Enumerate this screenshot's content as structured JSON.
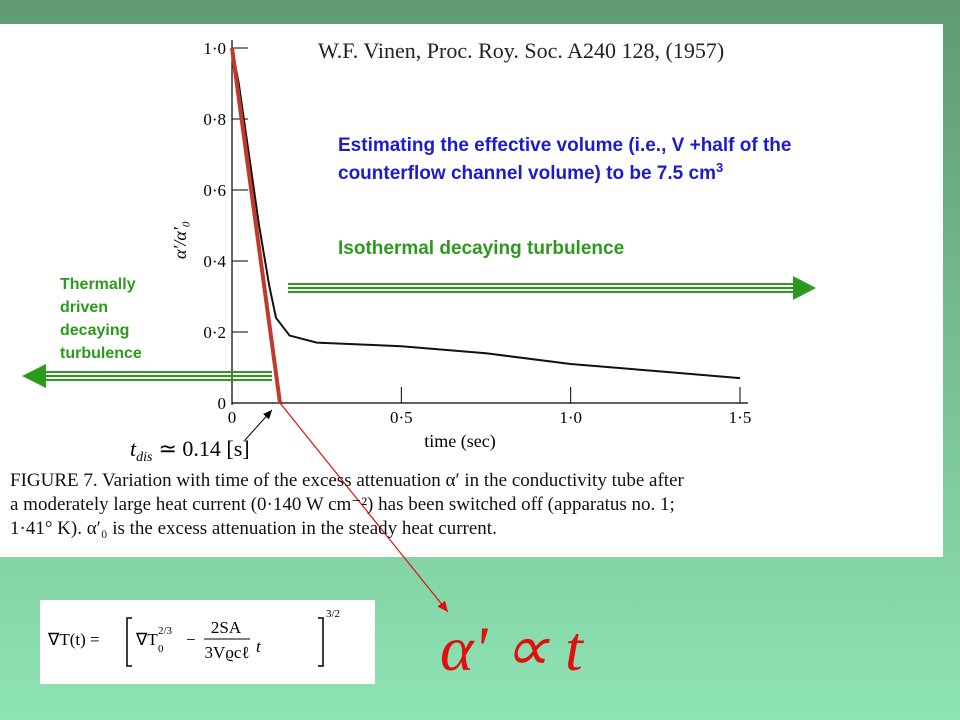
{
  "citation": "W.F. Vinen, Proc. Roy. Soc. A240 128, (1957)",
  "estimate": {
    "line1": "Estimating the effective volume (i.e., V +half of the",
    "line2": "counterflow channel volume) to be 7.5 cm",
    "sup": "3"
  },
  "isothermal_label": "Isothermal decaying turbulence",
  "thermal_label": [
    "Thermally",
    "driven",
    "decaying",
    "turbulence"
  ],
  "tdis": {
    "t": "t",
    "sub": "dis",
    "rest": "≃ 0.14 [s]"
  },
  "chart_data": {
    "type": "line",
    "y_label": "α′/α′₀",
    "x_label": "time (sec)",
    "x": [
      0,
      0.02,
      0.05,
      0.08,
      0.11,
      0.13,
      0.17,
      0.25,
      0.5,
      0.75,
      1.0,
      1.25,
      1.5
    ],
    "values": [
      1.0,
      0.9,
      0.7,
      0.5,
      0.33,
      0.24,
      0.19,
      0.17,
      0.16,
      0.14,
      0.11,
      0.09,
      0.07
    ],
    "color": "#111111",
    "xlim": [
      0,
      1.5
    ],
    "ylim": [
      0,
      1
    ],
    "xticks": [
      0,
      {
        "value": 0.5,
        "label": "0·5"
      },
      {
        "value": 1,
        "label": "1·0"
      },
      {
        "value": 1.5,
        "label": "1·5"
      }
    ],
    "yticks": [
      0,
      {
        "value": 0.2,
        "label": "0·2"
      },
      {
        "value": 0.4,
        "label": "0·4"
      },
      {
        "value": 0.6,
        "label": "0·6"
      },
      {
        "value": 0.8,
        "label": "0·8"
      },
      {
        "value": 1,
        "label": "1·0"
      }
    ]
  },
  "caption": [
    "FIGURE 7. Variation with time of the excess attenuation α′ in the conductivity tube after",
    "a moderately large heat current (0·140 W cm⁻²) has been switched off (apparatus no. 1;",
    "1·41° K).  α′₀ is the excess attenuation in the steady heat current."
  ],
  "formula": {
    "lhs": "∇T(t) =",
    "base": "∇T",
    "sub": "0",
    "exp1": "2/3",
    "minus": "−",
    "numerator": "2SA",
    "denominator": "3Vϱcℓ",
    "t": "t",
    "exp2": "3/2"
  },
  "proportional": "α' ∝ t"
}
